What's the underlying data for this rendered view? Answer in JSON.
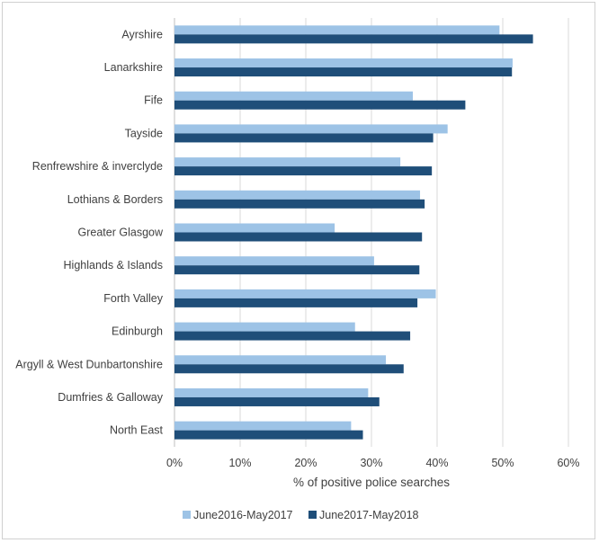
{
  "chart_data": {
    "type": "bar",
    "orientation": "horizontal",
    "categories": [
      "Ayrshire",
      "Lanarkshire",
      "Fife",
      "Tayside",
      "Renfrewshire & inverclyde",
      "Lothians & Borders",
      "Greater Glasgow",
      "Highlands & Islands",
      "Forth Valley",
      "Edinburgh",
      "Argyll & West Dunbartonshire",
      "Dumfries & Galloway",
      "North East"
    ],
    "series": [
      {
        "name": "June2016-May2017",
        "color": "#9dc3e6",
        "values": [
          49.5,
          51.5,
          36.3,
          41.6,
          34.4,
          37.4,
          24.4,
          30.4,
          39.8,
          27.5,
          32.2,
          29.5,
          26.9
        ]
      },
      {
        "name": "June2017-May2018",
        "color": "#1f4e79",
        "values": [
          54.6,
          51.4,
          44.3,
          39.4,
          39.2,
          38.1,
          37.7,
          37.3,
          37.0,
          35.9,
          34.9,
          31.2,
          28.7
        ]
      }
    ],
    "xlabel": "% of positive police searches",
    "ylabel": "",
    "xlim": [
      0,
      60
    ],
    "xticks": [
      "0%",
      "10%",
      "20%",
      "30%",
      "40%",
      "50%",
      "60%"
    ],
    "grid": "vertical",
    "legend": "bottom"
  }
}
